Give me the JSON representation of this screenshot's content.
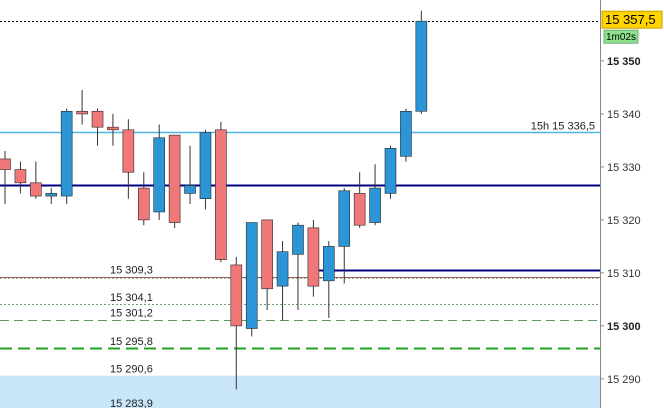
{
  "chart_data": {
    "type": "candlestick",
    "ylim": [
      15284.5,
      15361.5
    ],
    "y_ticks": [
      {
        "value": 15350,
        "label": "15 350",
        "bold": true
      },
      {
        "value": 15340,
        "label": "15 340",
        "bold": false
      },
      {
        "value": 15330,
        "label": "15 330",
        "bold": false
      },
      {
        "value": 15320,
        "label": "15 320",
        "bold": false
      },
      {
        "value": 15310,
        "label": "15 310",
        "bold": false
      },
      {
        "value": 15300,
        "label": "15 300",
        "bold": true
      },
      {
        "value": 15290,
        "label": "15 290",
        "bold": false
      }
    ],
    "candles": [
      {
        "o": 15331.5,
        "h": 15333,
        "l": 15323,
        "c": 15329.5
      },
      {
        "o": 15329.5,
        "h": 15331,
        "l": 15325,
        "c": 15327
      },
      {
        "o": 15327,
        "h": 15331,
        "l": 15324,
        "c": 15324.5
      },
      {
        "o": 15324.5,
        "h": 15326,
        "l": 15323,
        "c": 15325
      },
      {
        "o": 15324.5,
        "h": 15341,
        "l": 15323,
        "c": 15340.5
      },
      {
        "o": 15340.5,
        "h": 15344.5,
        "l": 15338,
        "c": 15340
      },
      {
        "o": 15340.5,
        "h": 15341,
        "l": 15334,
        "c": 15337.5
      },
      {
        "o": 15337.5,
        "h": 15340,
        "l": 15334,
        "c": 15337
      },
      {
        "o": 15337,
        "h": 15339,
        "l": 15324,
        "c": 15329
      },
      {
        "o": 15326,
        "h": 15329,
        "l": 15319,
        "c": 15320
      },
      {
        "o": 15321.5,
        "h": 15338,
        "l": 15320,
        "c": 15335.5
      },
      {
        "o": 15336,
        "h": 15336,
        "l": 15318.5,
        "c": 15319.5
      },
      {
        "o": 15325,
        "h": 15334,
        "l": 15323,
        "c": 15326.5
      },
      {
        "o": 15324,
        "h": 15337,
        "l": 15322,
        "c": 15336.5
      },
      {
        "o": 15337,
        "h": 15338.5,
        "l": 15312,
        "c": 15312.5
      },
      {
        "o": 15311.5,
        "h": 15313,
        "l": 15288,
        "c": 15300
      },
      {
        "o": 15299.5,
        "h": 15319.5,
        "l": 15298,
        "c": 15319.5
      },
      {
        "o": 15320,
        "h": 15320,
        "l": 15303,
        "c": 15307
      },
      {
        "o": 15307.5,
        "h": 15316,
        "l": 15301,
        "c": 15314
      },
      {
        "o": 15313.5,
        "h": 15319.5,
        "l": 15303,
        "c": 15319
      },
      {
        "o": 15318.5,
        "h": 15320,
        "l": 15305.5,
        "c": 15307.5
      },
      {
        "o": 15308.5,
        "h": 15316,
        "l": 15301.5,
        "c": 15315
      },
      {
        "o": 15315,
        "h": 15326,
        "l": 15308,
        "c": 15325.5
      },
      {
        "o": 15325,
        "h": 15329,
        "l": 15318.5,
        "c": 15319
      },
      {
        "o": 15319.5,
        "h": 15330.5,
        "l": 15319,
        "c": 15326
      },
      {
        "o": 15325,
        "h": 15334,
        "l": 15324,
        "c": 15333.5
      },
      {
        "o": 15332,
        "h": 15341,
        "l": 15331,
        "c": 15340.5
      },
      {
        "o": 15340.5,
        "h": 15359.5,
        "l": 15340,
        "c": 15357.5
      }
    ],
    "levels": [
      {
        "value": 15357.5,
        "color": "#000000",
        "style": "dotted",
        "label": ""
      },
      {
        "value": 15336.5,
        "color": "#4fb8e0",
        "style": "solid",
        "label": "15h 15 336,5"
      },
      {
        "value": 15326.5,
        "color": "#000080",
        "style": "solid-thick",
        "label": ""
      },
      {
        "value": 15310.5,
        "color": "#000080",
        "style": "solid-partial",
        "label": ""
      },
      {
        "value": 15309.3,
        "color": "#a06060",
        "style": "thin",
        "label": "15 309,3"
      },
      {
        "value": 15309.0,
        "color": "#8fbf8f",
        "style": "dotted",
        "label": ""
      },
      {
        "value": 15304.1,
        "color": "#70a070",
        "style": "dotted",
        "label": "15 304,1"
      },
      {
        "value": 15301.2,
        "color": "#5a9a5a",
        "style": "dashed",
        "label": "15 301,2"
      },
      {
        "value": 15295.8,
        "color": "#22a022",
        "style": "dashed-thick",
        "label": "15 295,8"
      },
      {
        "value": 15290.6,
        "color": "#000000",
        "style": "thin",
        "label": "15 290,6"
      },
      {
        "value": 15283.9,
        "color": "#c8e6f8",
        "style": "zone",
        "label": "15 283,9"
      }
    ],
    "current_price": {
      "value": 15357.5,
      "label": "15 357,5"
    },
    "timer": {
      "label": "1m02s"
    },
    "colors": {
      "bull": "#2b95d6",
      "bear": "#f07878",
      "wick": "#333333",
      "axis_line": "#888888",
      "badge_bg": "#ffd400",
      "timer_bg": "#8ee08e"
    }
  }
}
